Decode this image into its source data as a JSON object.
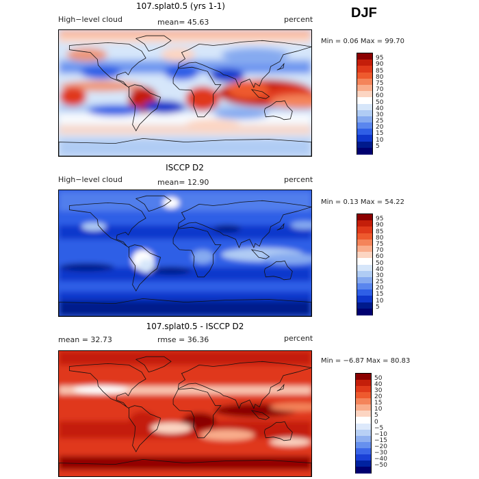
{
  "season": "DJF",
  "panels": [
    {
      "title": "107.splat0.5 (yrs 1-1)",
      "left_label": "High−level cloud",
      "center_label": "mean=  45.63",
      "units": "percent",
      "minmax": "Min =    0.06 Max =  99.70",
      "colorbar_key": "abs"
    },
    {
      "title": "ISCCP D2",
      "left_label": "High−level cloud",
      "center_label": "mean=  12.90",
      "units": "percent",
      "minmax": "Min =    0.13 Max =  54.22",
      "colorbar_key": "abs"
    },
    {
      "title": "107.splat0.5 - ISCCP D2",
      "left_label": "mean =   32.73",
      "center_label": "rmse =   36.36",
      "units": "percent",
      "minmax": "Min =  −6.87 Max =  80.83",
      "colorbar_key": "diff"
    }
  ],
  "chart_data": [
    {
      "type": "heatmap",
      "title": "107.splat0.5 (yrs 1-1)",
      "variable": "High-level cloud",
      "units": "percent",
      "mean": 45.63,
      "min": 0.06,
      "max": 99.7,
      "colorbar_levels": [
        95,
        90,
        85,
        80,
        75,
        70,
        60,
        50,
        40,
        30,
        25,
        20,
        15,
        10,
        5
      ]
    },
    {
      "type": "heatmap",
      "title": "ISCCP D2",
      "variable": "High-level cloud",
      "units": "percent",
      "mean": 12.9,
      "min": 0.13,
      "max": 54.22,
      "colorbar_levels": [
        95,
        90,
        85,
        80,
        75,
        70,
        60,
        50,
        40,
        30,
        25,
        20,
        15,
        10,
        5
      ]
    },
    {
      "type": "heatmap",
      "title": "107.splat0.5 - ISCCP D2",
      "units": "percent",
      "mean": 32.73,
      "rmse": 36.36,
      "min": -6.87,
      "max": 80.83,
      "colorbar_levels": [
        "50",
        "40",
        "30",
        "20",
        "15",
        "10",
        "5",
        "0",
        "−5",
        "−10",
        "−15",
        "−20",
        "−30",
        "−40",
        "−50"
      ]
    }
  ],
  "colorbars": {
    "abs_colors": [
      "#8b0000",
      "#c41e0a",
      "#e0391a",
      "#ee5a2e",
      "#f4845a",
      "#f9ad8c",
      "#fcd5c2",
      "#ffffff",
      "#d6e6fa",
      "#b0ccf4",
      "#86aaf0",
      "#5a86ee",
      "#2f5fe6",
      "#0f37cc",
      "#001a8c",
      "#000070"
    ],
    "diff_colors": [
      "#8b0000",
      "#c41e0a",
      "#e0391a",
      "#ee5a2e",
      "#f4845a",
      "#f9ad8c",
      "#fcd5c2",
      "#ffffff",
      "#dde9fb",
      "#b8d0f5",
      "#8fb0f0",
      "#6690ee",
      "#3b66e8",
      "#1a40d6",
      "#0022a0",
      "#000070"
    ]
  }
}
